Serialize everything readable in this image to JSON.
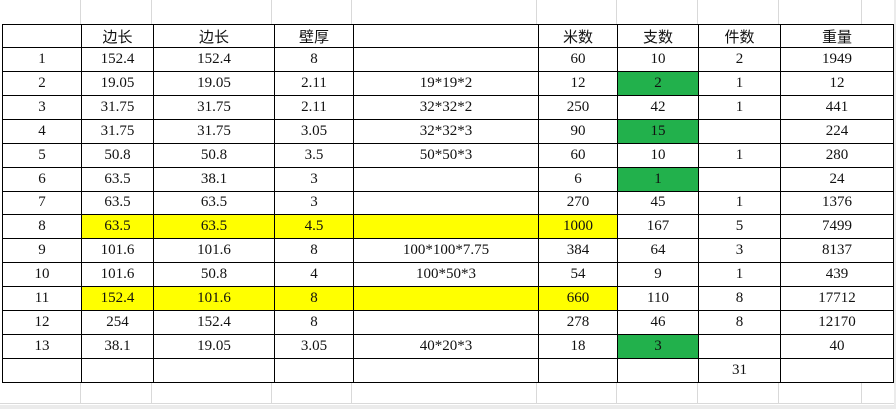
{
  "table": {
    "headers": [
      "",
      "边长",
      "边长",
      "壁厚",
      "",
      "米数",
      "支数",
      "件数",
      "重量"
    ],
    "rows": [
      {
        "cells": [
          "1",
          "152.4",
          "152.4",
          "8",
          "",
          "60",
          "10",
          "2",
          "1949"
        ]
      },
      {
        "cells": [
          "2",
          "19.05",
          "19.05",
          "2.11",
          "19*19*2",
          "12",
          "2",
          "1",
          "12"
        ],
        "green": [
          6
        ]
      },
      {
        "cells": [
          "3",
          "31.75",
          "31.75",
          "2.11",
          "32*32*2",
          "250",
          "42",
          "1",
          "441"
        ]
      },
      {
        "cells": [
          "4",
          "31.75",
          "31.75",
          "3.05",
          "32*32*3",
          "90",
          "15",
          "",
          "224"
        ],
        "green": [
          6
        ]
      },
      {
        "cells": [
          "5",
          "50.8",
          "50.8",
          "3.5",
          "50*50*3",
          "60",
          "10",
          "1",
          "280"
        ]
      },
      {
        "cells": [
          "6",
          "63.5",
          "38.1",
          "3",
          "",
          "6",
          "1",
          "",
          "24"
        ],
        "green": [
          6
        ]
      },
      {
        "cells": [
          "7",
          "63.5",
          "63.5",
          "3",
          "",
          "270",
          "45",
          "1",
          "1376"
        ]
      },
      {
        "cells": [
          "8",
          "63.5",
          "63.5",
          "4.5",
          "",
          "1000",
          "167",
          "5",
          "7499"
        ],
        "yellow": [
          1,
          2,
          3,
          4,
          5
        ]
      },
      {
        "cells": [
          "9",
          "101.6",
          "101.6",
          "8",
          "100*100*7.75",
          "384",
          "64",
          "3",
          "8137"
        ]
      },
      {
        "cells": [
          "10",
          "101.6",
          "50.8",
          "4",
          "100*50*3",
          "54",
          "9",
          "1",
          "439"
        ]
      },
      {
        "cells": [
          "11",
          "152.4",
          "101.6",
          "8",
          "",
          "660",
          "110",
          "8",
          "17712"
        ],
        "yellow": [
          1,
          2,
          3,
          4,
          5
        ]
      },
      {
        "cells": [
          "12",
          "254",
          "152.4",
          "8",
          "",
          "278",
          "46",
          "8",
          "12170"
        ]
      },
      {
        "cells": [
          "13",
          "38.1",
          "19.05",
          "3.05",
          "40*20*3",
          "18",
          "3",
          "",
          "40"
        ],
        "green": [
          6
        ]
      },
      {
        "cells": [
          "",
          "",
          "",
          "",
          "",
          "",
          "",
          "31",
          ""
        ]
      }
    ]
  },
  "colors": {
    "highlight_yellow": "#ffff00",
    "highlight_green": "#22b14c",
    "gridline": "#d9d9d9",
    "table_border": "#000000"
  }
}
